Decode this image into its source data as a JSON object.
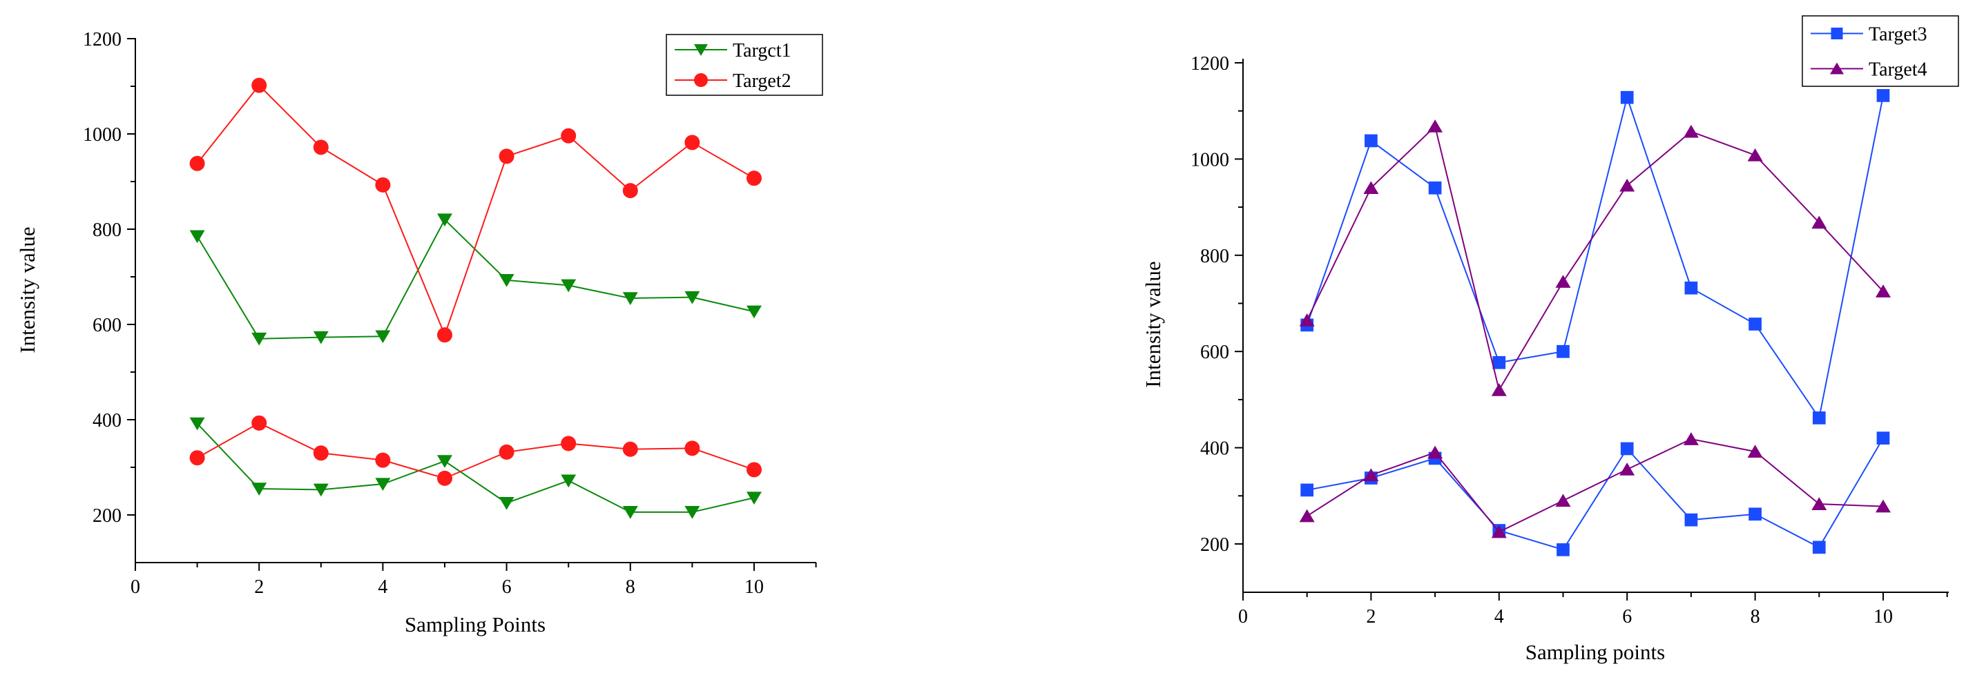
{
  "chart_data": [
    {
      "type": "line",
      "title": "",
      "xlabel": "Sampling Points",
      "ylabel": "Intensity value",
      "xlim": [
        0,
        11
      ],
      "ylim": [
        100,
        1200
      ],
      "xticks": [
        0,
        2,
        4,
        6,
        8,
        10
      ],
      "yticks": [
        200,
        400,
        600,
        800,
        1000,
        1200
      ],
      "legend_position": "top-right",
      "x": [
        1,
        2,
        3,
        4,
        5,
        6,
        7,
        8,
        9,
        10
      ],
      "series": [
        {
          "name": "Targct1",
          "group": "upper",
          "legend": true,
          "color": "#0a8a0a",
          "marker": "triangle-down",
          "values": [
            785,
            570,
            573,
            575,
            820,
            693,
            682,
            655,
            657,
            627
          ]
        },
        {
          "name": "Target2",
          "group": "upper",
          "legend": true,
          "color": "#ff1a1a",
          "marker": "circle",
          "values": [
            938,
            1102,
            972,
            893,
            578,
            953,
            996,
            881,
            982,
            907
          ]
        },
        {
          "name": "Targct1",
          "group": "lower",
          "legend": false,
          "color": "#0a8a0a",
          "marker": "triangle-down",
          "values": [
            392,
            255,
            253,
            265,
            313,
            225,
            272,
            206,
            206,
            236
          ]
        },
        {
          "name": "Target2",
          "group": "lower",
          "legend": false,
          "color": "#ff1a1a",
          "marker": "circle",
          "values": [
            320,
            393,
            330,
            315,
            277,
            332,
            350,
            338,
            340,
            295
          ]
        }
      ]
    },
    {
      "type": "line",
      "title": "",
      "xlabel": "Sampling points",
      "ylabel": "Intensity value",
      "xlim": [
        0,
        11
      ],
      "ylim": [
        100,
        1200
      ],
      "xticks": [
        0,
        2,
        4,
        6,
        8,
        10
      ],
      "yticks": [
        200,
        400,
        600,
        800,
        1000,
        1200
      ],
      "legend_position": "top-right",
      "x": [
        1,
        2,
        3,
        4,
        5,
        6,
        7,
        8,
        9,
        10
      ],
      "series": [
        {
          "name": "Target3",
          "group": "upper",
          "legend": true,
          "color": "#1a4cff",
          "marker": "square",
          "values": [
            655,
            1038,
            940,
            577,
            600,
            1128,
            732,
            657,
            462,
            1132
          ]
        },
        {
          "name": "Target4",
          "group": "upper",
          "legend": true,
          "color": "#800080",
          "marker": "triangle-up",
          "values": [
            665,
            940,
            1068,
            520,
            745,
            945,
            1057,
            1008,
            868,
            725
          ]
        },
        {
          "name": "Target3",
          "group": "lower",
          "legend": false,
          "color": "#1a4cff",
          "marker": "square",
          "values": [
            312,
            337,
            378,
            228,
            188,
            398,
            250,
            262,
            193,
            420
          ]
        },
        {
          "name": "Target4",
          "group": "lower",
          "legend": false,
          "color": "#800080",
          "marker": "triangle-up",
          "values": [
            258,
            343,
            390,
            225,
            290,
            355,
            418,
            392,
            283,
            278
          ]
        }
      ]
    }
  ]
}
